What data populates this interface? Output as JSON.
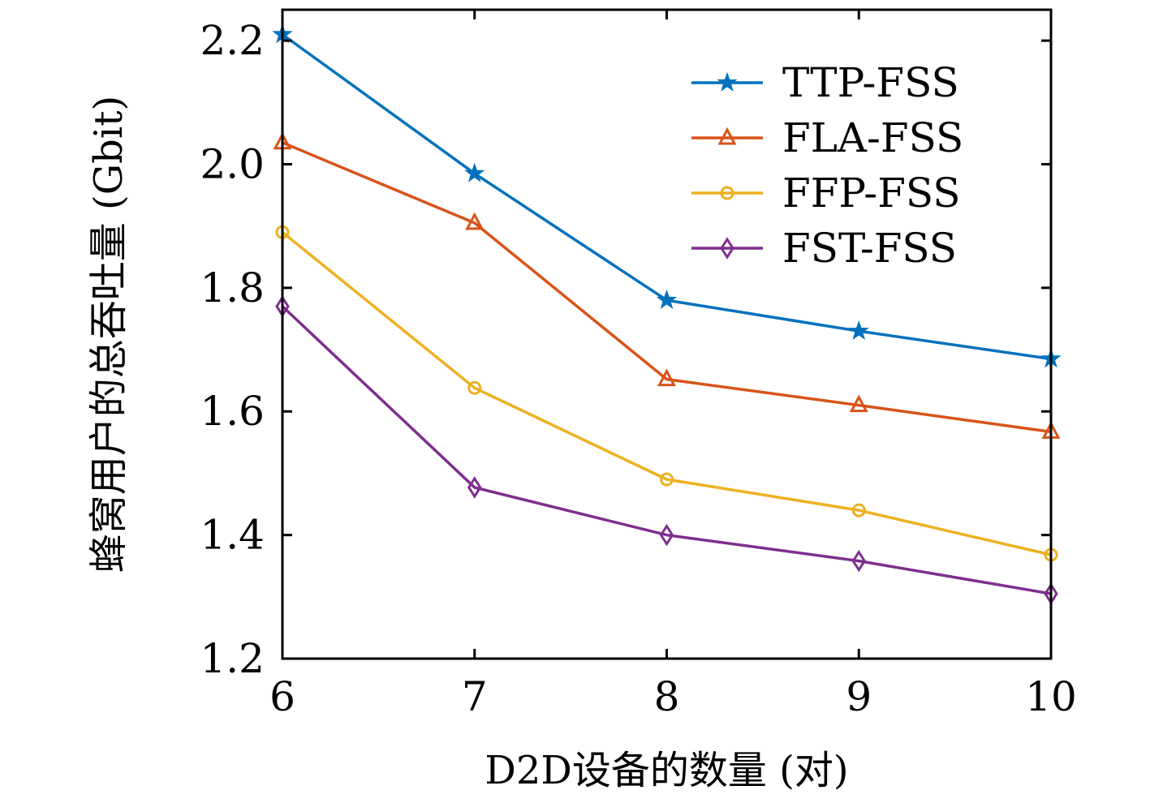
{
  "chart_data": {
    "type": "line",
    "xlabel": "D2D设备的数量 (对)",
    "ylabel": "蜂窝用户的总吞吐量 (Gbit)",
    "x": [
      6,
      7,
      8,
      9,
      10
    ],
    "xlim": [
      6,
      10
    ],
    "ylim": [
      1.2,
      2.25
    ],
    "xticks": [
      6,
      7,
      8,
      9,
      10
    ],
    "yticks": [
      1.2,
      1.4,
      1.6,
      1.8,
      2.0,
      2.2
    ],
    "xtick_labels": [
      "6",
      "7",
      "8",
      "9",
      "10"
    ],
    "ytick_labels": [
      "1.2",
      "1.4",
      "1.6",
      "1.8",
      "2.0",
      "2.2"
    ],
    "grid": false,
    "legend_position": "top-right",
    "series": [
      {
        "name": "TTP-FSS",
        "marker": "star",
        "color": "#0072BD",
        "values": [
          2.21,
          1.985,
          1.78,
          1.73,
          1.685
        ]
      },
      {
        "name": "FLA-FSS",
        "marker": "triangle",
        "color": "#D95319",
        "values": [
          2.035,
          1.905,
          1.652,
          1.61,
          1.567
        ]
      },
      {
        "name": "FFP-FSS",
        "marker": "circle",
        "color": "#EDB120",
        "values": [
          1.89,
          1.638,
          1.49,
          1.44,
          1.368
        ]
      },
      {
        "name": "FST-FSS",
        "marker": "diamond",
        "color": "#7E2F8E",
        "values": [
          1.77,
          1.477,
          1.4,
          1.358,
          1.305
        ]
      }
    ]
  }
}
